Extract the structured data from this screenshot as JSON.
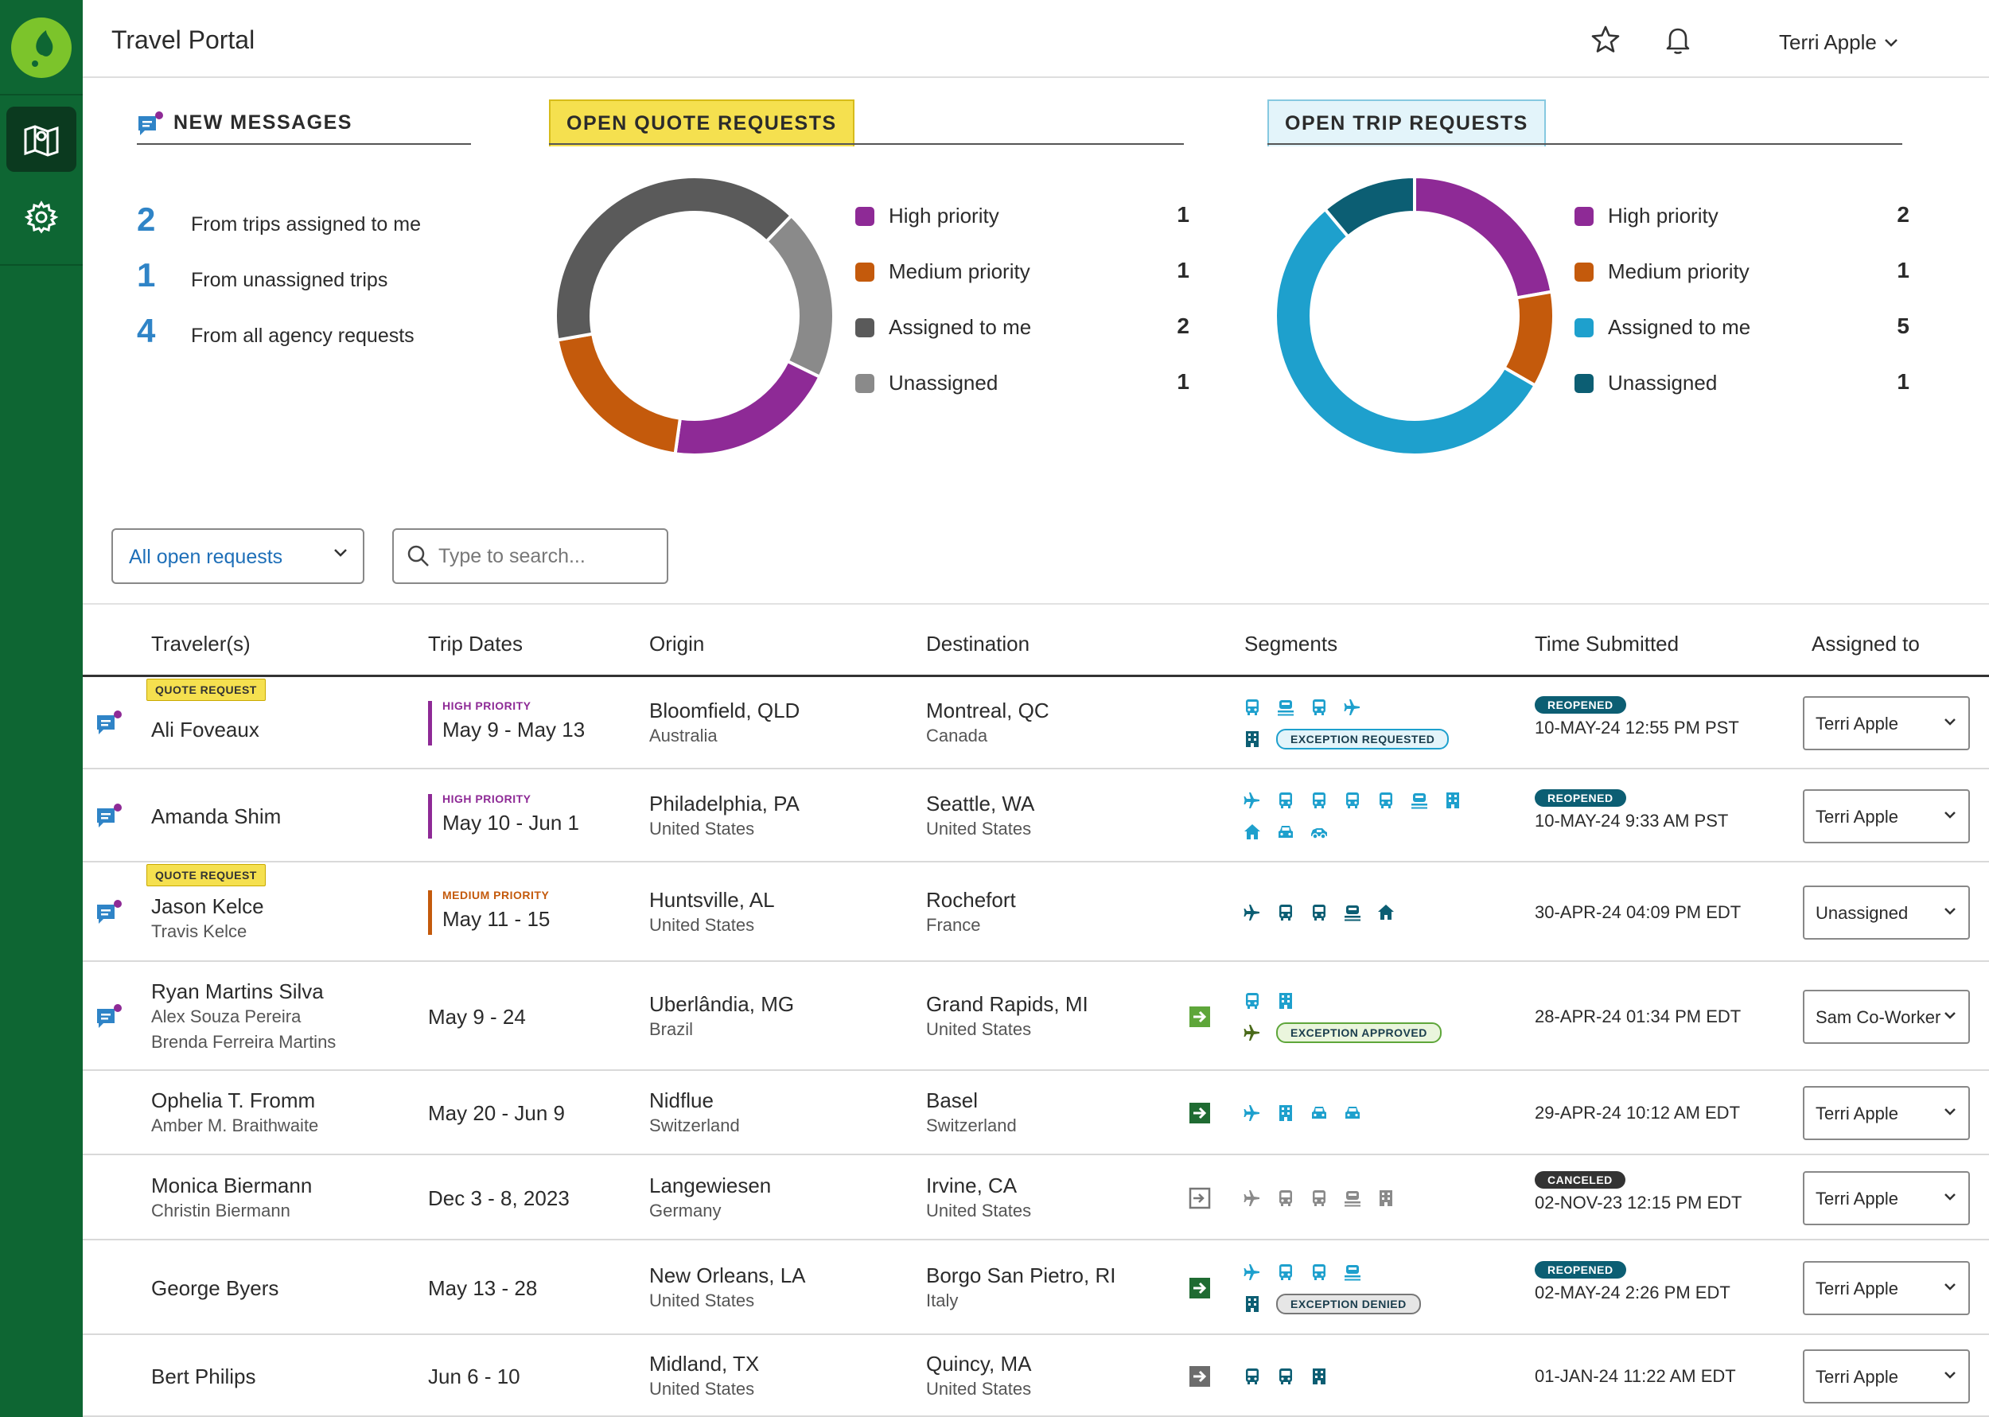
{
  "header": {
    "title": "Travel Portal",
    "user": "Terri Apple"
  },
  "nav": [
    "map-icon",
    "gear-icon"
  ],
  "messages": {
    "title": "NEW MESSAGES",
    "items": [
      {
        "count": "2",
        "label": "From trips assigned to me"
      },
      {
        "count": "1",
        "label": "From unassigned trips"
      },
      {
        "count": "4",
        "label": "From all agency requests"
      }
    ]
  },
  "quote_widget": {
    "title": "OPEN QUOTE REQUESTS",
    "legend": [
      {
        "label": "High priority",
        "value": "1",
        "color": "#8e2a96"
      },
      {
        "label": "Medium priority",
        "value": "1",
        "color": "#c45a0c"
      },
      {
        "label": "Assigned to me",
        "value": "2",
        "color": "#5a5a5a"
      },
      {
        "label": "Unassigned",
        "value": "1",
        "color": "#8a8a8a"
      }
    ]
  },
  "trip_widget": {
    "title": "OPEN TRIP REQUESTS",
    "legend": [
      {
        "label": "High priority",
        "value": "2",
        "color": "#8e2a96"
      },
      {
        "label": "Medium priority",
        "value": "1",
        "color": "#c45a0c"
      },
      {
        "label": "Assigned to me",
        "value": "5",
        "color": "#1ea0cd"
      },
      {
        "label": "Unassigned",
        "value": "1",
        "color": "#0c5e73"
      }
    ]
  },
  "filters": {
    "select_value": "All open requests",
    "search_placeholder": "Type to search..."
  },
  "table": {
    "headers": [
      "Traveler(s)",
      "Trip Dates",
      "Origin",
      "Destination",
      "Segments",
      "Time Submitted",
      "Assigned to"
    ],
    "rows": [
      {
        "badge": "QUOTE REQUEST",
        "travelers": [
          "Ali Foveaux"
        ],
        "priority": "HIGH PRIORITY",
        "dates": "May 9 - May 13",
        "origin": "Bloomfield, QLD",
        "origin_country": "Australia",
        "dest": "Montreal, QC",
        "dest_country": "Canada",
        "status": "REOPENED",
        "exception": "EXCEPTION REQUESTED",
        "time": "10-MAY-24 12:55 PM PST",
        "assigned": "Terri Apple"
      },
      {
        "badge": "",
        "travelers": [
          "Amanda Shim"
        ],
        "priority": "HIGH PRIORITY",
        "dates": "May 10 - Jun 1",
        "origin": "Philadelphia, PA",
        "origin_country": "United States",
        "dest": "Seattle, WA",
        "dest_country": "United States",
        "status": "REOPENED",
        "exception": "",
        "time": "10-MAY-24 9:33 AM PST",
        "assigned": "Terri Apple"
      },
      {
        "badge": "QUOTE REQUEST",
        "travelers": [
          "Jason Kelce",
          "Travis Kelce"
        ],
        "priority": "MEDIUM PRIORITY",
        "dates": "May 11 - 15",
        "origin": "Huntsville, AL",
        "origin_country": "United States",
        "dest": "Rochefort",
        "dest_country": "France",
        "status": "",
        "exception": "",
        "time": "30-APR-24 04:09 PM EDT",
        "assigned": "Unassigned"
      },
      {
        "badge": "",
        "travelers": [
          "Ryan Martins Silva",
          "Alex Souza Pereira",
          "Brenda Ferreira Martins"
        ],
        "priority": "",
        "dates": "May 9 - 24",
        "origin": "Uberlândia, MG",
        "origin_country": "Brazil",
        "dest": "Grand Rapids, MI",
        "dest_country": "United States",
        "status": "",
        "exception": "EXCEPTION APPROVED",
        "time": "28-APR-24 01:34 PM EDT",
        "assigned": "Sam Co-Worker"
      },
      {
        "badge": "",
        "travelers": [
          "Ophelia T. Fromm",
          "Amber M. Braithwaite"
        ],
        "priority": "",
        "dates": "May 20 - Jun 9",
        "origin": "Nidflue",
        "origin_country": "Switzerland",
        "dest": "Basel",
        "dest_country": "Switzerland",
        "status": "",
        "exception": "",
        "time": "29-APR-24 10:12 AM EDT",
        "assigned": "Terri Apple"
      },
      {
        "badge": "",
        "travelers": [
          "Monica Biermann",
          "Christin Biermann"
        ],
        "priority": "",
        "dates": "Dec 3 - 8, 2023",
        "origin": "Langewiesen",
        "origin_country": "Germany",
        "dest": "Irvine, CA",
        "dest_country": "United States",
        "status": "CANCELED",
        "exception": "",
        "time": "02-NOV-23 12:15 PM EDT",
        "assigned": "Terri Apple"
      },
      {
        "badge": "",
        "travelers": [
          "George Byers"
        ],
        "priority": "",
        "dates": "May 13 - 28",
        "origin": "New Orleans, LA",
        "origin_country": "United States",
        "dest": "Borgo San Pietro, RI",
        "dest_country": "Italy",
        "status": "REOPENED",
        "exception": "EXCEPTION DENIED",
        "time": "02-MAY-24 2:26 PM EDT",
        "assigned": "Terri Apple"
      },
      {
        "badge": "",
        "travelers": [
          "Bert Philips"
        ],
        "priority": "",
        "dates": "Jun 6 - 10",
        "origin": "Midland, TX",
        "origin_country": "United States",
        "dest": "Quincy, MA",
        "dest_country": "United States",
        "status": "",
        "exception": "",
        "time": "01-JAN-24 11:22 AM EDT",
        "assigned": "Terri Apple"
      }
    ]
  }
}
